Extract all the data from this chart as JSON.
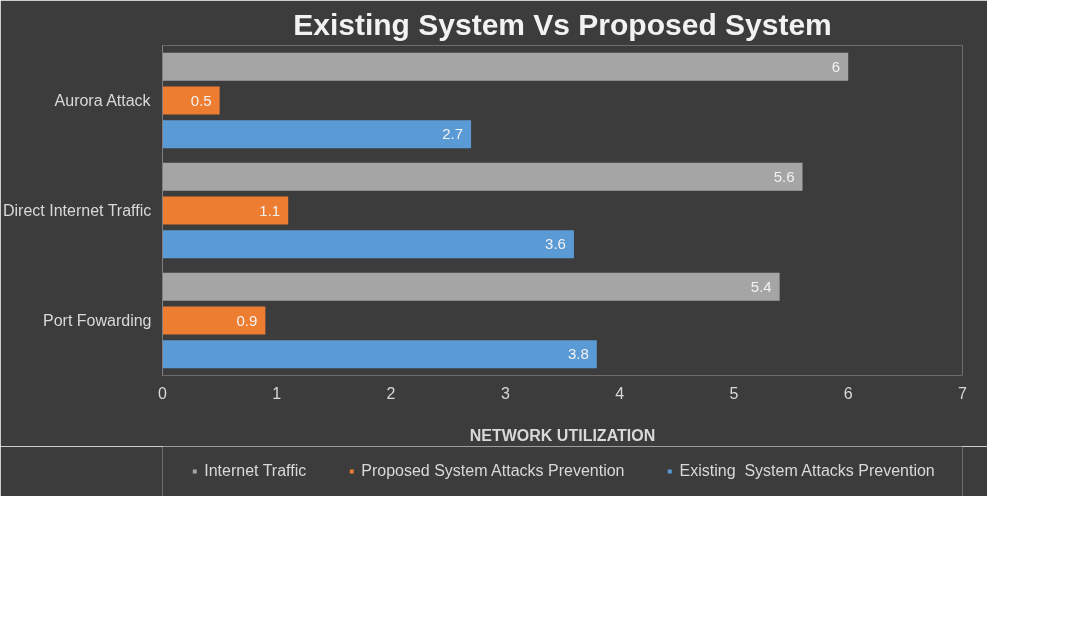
{
  "chart_data": {
    "type": "bar",
    "orientation": "horizontal",
    "title": "Existing System Vs Proposed System",
    "xlabel": "NETWORK UTILIZATION",
    "categories": [
      "Aurora Attack",
      "Direct Internet Traffic",
      "Port Fowarding"
    ],
    "series": [
      {
        "name": "Internet Traffic",
        "color": "#a5a5a5",
        "values": [
          6,
          5.6,
          5.4
        ]
      },
      {
        "name": "Proposed System Attacks Prevention",
        "color": "#ed7d31",
        "values": [
          0.5,
          1.1,
          0.9
        ]
      },
      {
        "name": "Existing  System Attacks Prevention",
        "color": "#5b9bd5",
        "values": [
          2.7,
          3.6,
          3.8
        ]
      }
    ],
    "xlim": [
      0,
      7
    ],
    "xticks": [
      0,
      1,
      2,
      3,
      4,
      5,
      6,
      7
    ],
    "grid": false,
    "legend": "bottom",
    "data_labels": true
  }
}
